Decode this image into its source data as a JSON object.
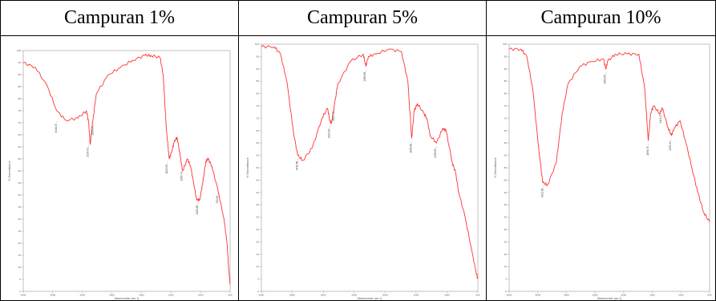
{
  "panels": [
    {
      "title": "Campuran 1%",
      "chart_data": {
        "type": "line",
        "title": "Campuran 1%",
        "xlabel": "Wavenumber (cm-1)",
        "ylabel": "% Transmittance",
        "xlim": [
          4000,
          600
        ],
        "ylim": [
          0,
          100
        ],
        "x_ticks": [
          "4000",
          "3500",
          "3000",
          "2500",
          "2000",
          "1500",
          "1000",
          "600"
        ],
        "y_ticks": [
          "100",
          "95",
          "90",
          "85",
          "80",
          "75",
          "70",
          "65",
          "60",
          "55",
          "50",
          "45",
          "40",
          "35",
          "30",
          "25",
          "20",
          "15",
          "10",
          "5",
          "0"
        ],
        "color": "#ff3333",
        "series": [
          {
            "name": "",
            "x": [
              4000,
              3800,
              3600,
              3450,
              3300,
              3100,
              2960,
              2925,
              2900,
              2855,
              2800,
              2600,
              2400,
              2200,
              2000,
              1900,
              1750,
              1700,
              1650,
              1600,
              1560,
              1520,
              1470,
              1420,
              1380,
              1300,
              1250,
              1200,
              1150,
              1100,
              1050,
              1000,
              960,
              900,
              800,
              700,
              650,
              620,
              600
            ],
            "y": [
              95,
              93,
              85,
              75,
              71,
              72,
              75,
              70,
              61,
              71,
              82,
              90,
              93,
              96,
              98,
              98,
              97,
              90,
              68,
              55,
              58,
              62,
              64,
              56,
              50,
              55,
              52,
              45,
              38,
              38,
              45,
              54,
              55,
              52,
              42,
              30,
              20,
              8,
              3
            ]
          }
        ],
        "peaks": [
          {
            "x": 3446,
            "y": 71,
            "label": "3446.49"
          },
          {
            "x": 2924,
            "y": 61,
            "label": "2924.41"
          },
          {
            "x": 2850,
            "y": 70,
            "label": "2850.49"
          },
          {
            "x": 1629,
            "y": 54,
            "label": "1629.58"
          },
          {
            "x": 1384,
            "y": 51,
            "label": "1384.74"
          },
          {
            "x": 1130,
            "y": 37,
            "label": "1130.88"
          },
          {
            "x": 800,
            "y": 41,
            "label": "799.06"
          }
        ]
      }
    },
    {
      "title": "Campuran 5%",
      "chart_data": {
        "type": "line",
        "title": "Campuran 5%",
        "xlabel": "Wavenumber (cm-1)",
        "ylabel": "% Transmittance",
        "xlim": [
          4000,
          600
        ],
        "ylim": [
          0,
          100
        ],
        "x_ticks": [
          "4000",
          "3500",
          "3000",
          "2500",
          "2000",
          "1500",
          "1000",
          "600"
        ],
        "y_ticks": [
          "100",
          "95",
          "90",
          "85",
          "80",
          "75",
          "70",
          "65",
          "60",
          "55",
          "50",
          "45",
          "40",
          "35",
          "30",
          "25",
          "20",
          "15",
          "10",
          "5",
          "0"
        ],
        "color": "#ff3333",
        "series": [
          {
            "name": "",
            "x": [
              4000,
              3800,
              3700,
              3600,
              3500,
              3430,
              3350,
              3200,
              3050,
              2960,
              2925,
              2900,
              2855,
              2800,
              2600,
              2400,
              2360,
              2320,
              2200,
              2000,
              1800,
              1700,
              1640,
              1600,
              1550,
              1450,
              1400,
              1350,
              1250,
              1150,
              1100,
              1000,
              950,
              900,
              800,
              700,
              630,
              600
            ],
            "y": [
              99,
              99,
              96,
              85,
              65,
              55,
              53,
              58,
              70,
              74,
              69,
              68,
              75,
              84,
              93,
              96,
              91,
              95,
              96,
              98,
              97,
              85,
              62,
              73,
              76,
              72,
              70,
              63,
              60,
              66,
              65,
              52,
              48,
              40,
              30,
              17,
              8,
              5
            ]
          }
        ],
        "peaks": [
          {
            "x": 3430,
            "y": 54,
            "label": "3430.86"
          },
          {
            "x": 2925,
            "y": 67,
            "label": "2924.50"
          },
          {
            "x": 2855,
            "y": 74,
            "label": "2853.73"
          },
          {
            "x": 2360,
            "y": 90,
            "label": "2360.68"
          },
          {
            "x": 1636,
            "y": 61,
            "label": "1636.86"
          },
          {
            "x": 1253,
            "y": 59,
            "label": "1253.83"
          }
        ]
      }
    },
    {
      "title": "Campuran 10%",
      "chart_data": {
        "type": "line",
        "title": "Campuran 10%",
        "xlabel": "Wavenumber (cm-1)",
        "ylabel": "% Transmittance",
        "xlim": [
          4000,
          600
        ],
        "ylim": [
          0,
          100
        ],
        "x_ticks": [
          "4000",
          "3500",
          "3000",
          "2500",
          "2000",
          "1500",
          "1000",
          "600"
        ],
        "y_ticks": [
          "100",
          "95",
          "90",
          "85",
          "80",
          "75",
          "70",
          "65",
          "60",
          "55",
          "50",
          "45",
          "40",
          "35",
          "30",
          "25",
          "20",
          "15",
          "10",
          "5",
          "0"
        ],
        "color": "#ff3333",
        "series": [
          {
            "name": "",
            "x": [
              4000,
              3800,
              3700,
              3600,
              3500,
              3430,
              3350,
              3200,
              3100,
              3000,
              2800,
              2600,
              2400,
              2360,
              2330,
              2200,
              2000,
              1800,
              1700,
              1640,
              1600,
              1550,
              1450,
              1400,
              1300,
              1250,
              1200,
              1100,
              1000,
              900,
              800,
              700,
              600
            ],
            "y": [
              98,
              98,
              95,
              82,
              58,
              44,
              43,
              52,
              72,
              84,
              91,
              93,
              94,
              90,
              93,
              96,
              96,
              96,
              82,
              61,
              72,
              75,
              72,
              74,
              66,
              63,
              66,
              69,
              60,
              50,
              40,
              32,
              28
            ]
          }
        ],
        "peaks": [
          {
            "x": 3422,
            "y": 43,
            "label": "3422.68"
          },
          {
            "x": 2363,
            "y": 89,
            "label": "2363.85"
          },
          {
            "x": 1636,
            "y": 60,
            "label": "1636.75"
          },
          {
            "x": 1413,
            "y": 73,
            "label": "1413.27"
          },
          {
            "x": 1255,
            "y": 62,
            "label": "1255.34"
          }
        ]
      }
    }
  ]
}
